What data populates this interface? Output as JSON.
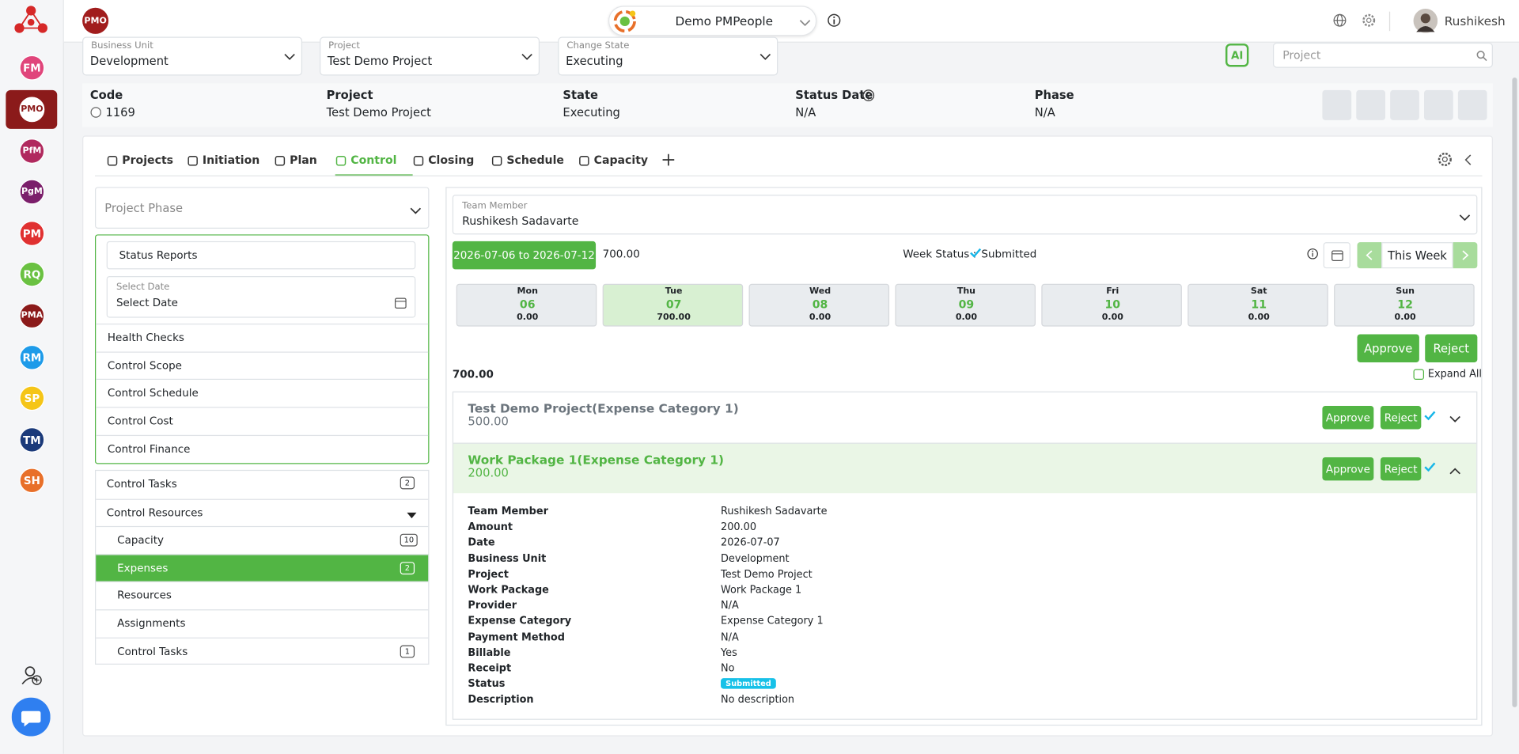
{
  "sidebar": {
    "apps": [
      "FM",
      "PMO",
      "PfM",
      "PgM",
      "PM",
      "RQ",
      "PMA",
      "RM",
      "SP",
      "TM",
      "SH"
    ]
  },
  "header": {
    "logo": "PMO",
    "workspace": "Demo PMPeople",
    "user": "Rushikesh"
  },
  "filters": [
    {
      "label": "Business Unit",
      "value": "Development"
    },
    {
      "label": "Project",
      "value": "Test Demo Project"
    },
    {
      "label": "Change State",
      "value": "Executing"
    }
  ],
  "ai_button": "AI",
  "search_placeholder": "Project",
  "summary": [
    {
      "label": "Code",
      "value": "1169"
    },
    {
      "label": "Project",
      "value": "Test Demo Project"
    },
    {
      "label": "State",
      "value": "Executing"
    },
    {
      "label": "Status Date",
      "value": "N/A"
    },
    {
      "label": "Phase",
      "value": "N/A"
    }
  ],
  "tabs": [
    "Projects",
    "Initiation",
    "Plan",
    "Control",
    "Closing",
    "Schedule",
    "Capacity"
  ],
  "left_panel": {
    "phase_placeholder": "Project Phase",
    "status_reports": "Status Reports",
    "date_label": "Select Date",
    "date_placeholder": "Select Date",
    "items": [
      "Health Checks",
      "Control Scope",
      "Control Schedule",
      "Control Cost",
      "Control Finance"
    ],
    "menu": [
      {
        "label": "Control Tasks",
        "count": 2
      },
      {
        "label": "Control Resources"
      }
    ],
    "submenu": [
      {
        "label": "Capacity",
        "count": 10
      },
      {
        "label": "Expenses",
        "count": 2
      },
      {
        "label": "Resources"
      },
      {
        "label": "Assignments"
      },
      {
        "label": "Control Tasks",
        "count": 1
      }
    ]
  },
  "main": {
    "member_label": "Team Member",
    "member": "Rushikesh Sadavarte",
    "range": "2026-07-06 to 2026-07-12",
    "week_total": "700.00",
    "week_status_label": "Week Status :",
    "week_status": "Submitted",
    "this_week": "This Week",
    "days": [
      {
        "day": "Mon",
        "date": "06",
        "amount": "0.00"
      },
      {
        "day": "Tue",
        "date": "07",
        "amount": "700.00"
      },
      {
        "day": "Wed",
        "date": "08",
        "amount": "0.00"
      },
      {
        "day": "Thu",
        "date": "09",
        "amount": "0.00"
      },
      {
        "day": "Fri",
        "date": "10",
        "amount": "0.00"
      },
      {
        "day": "Sat",
        "date": "11",
        "amount": "0.00"
      },
      {
        "day": "Sun",
        "date": "12",
        "amount": "0.00"
      }
    ],
    "approve": "Approve",
    "reject": "Reject",
    "total": "700.00",
    "expand_all": "Expand All",
    "groups": [
      {
        "title": "Test Demo Project(Expense Category 1)",
        "amount": "500.00",
        "approve": "Approve",
        "reject": "Reject"
      },
      {
        "title": "Work Package 1(Expense Category 1)",
        "amount": "200.00",
        "approve": "Approve",
        "reject": "Reject"
      }
    ],
    "details": [
      {
        "label": "Team Member",
        "value": "Rushikesh Sadavarte"
      },
      {
        "label": "Amount",
        "value": "200.00"
      },
      {
        "label": "Date",
        "value": "2026-07-07"
      },
      {
        "label": "Business Unit",
        "value": "Development"
      },
      {
        "label": "Project",
        "value": "Test Demo Project"
      },
      {
        "label": "Work Package",
        "value": "Work Package 1"
      },
      {
        "label": "Provider",
        "value": "N/A"
      },
      {
        "label": "Expense Category",
        "value": "Expense Category 1"
      },
      {
        "label": "Payment Method",
        "value": "N/A"
      },
      {
        "label": "Billable",
        "value": "Yes"
      },
      {
        "label": "Receipt",
        "value": "No"
      },
      {
        "label": "Status",
        "value": "Submitted"
      },
      {
        "label": "Description",
        "value": "No description"
      }
    ]
  }
}
